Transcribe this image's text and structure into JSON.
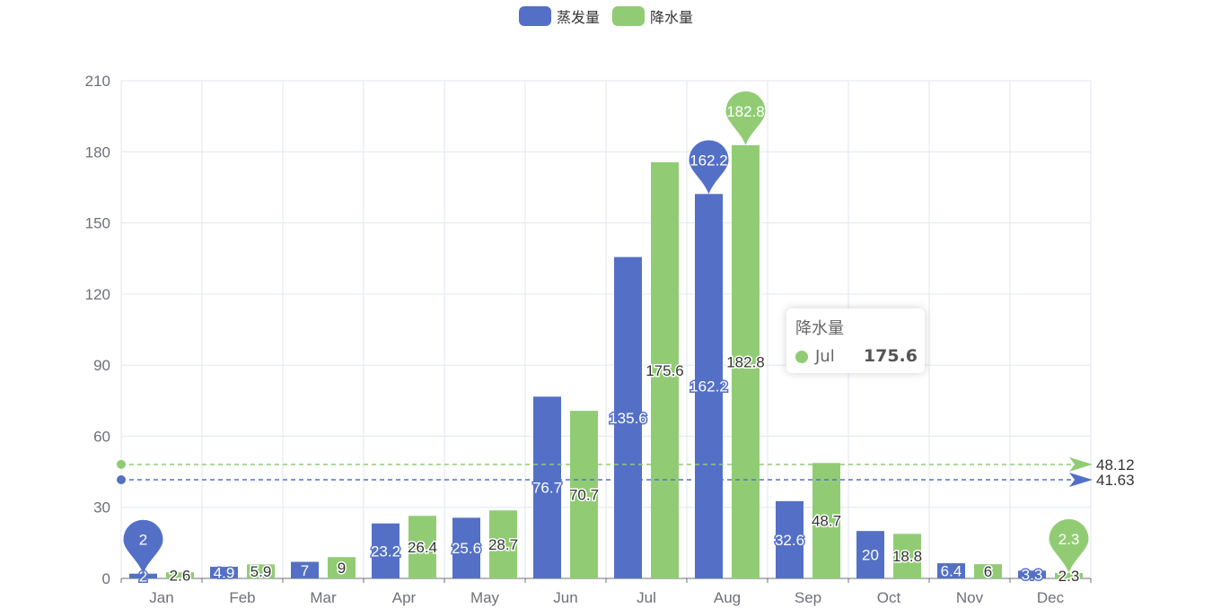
{
  "legend": [
    {
      "name": "蒸发量",
      "color": "#5470c6"
    },
    {
      "name": "降水量",
      "color": "#91cc75"
    }
  ],
  "chart_data": {
    "type": "bar",
    "categories": [
      "Jan",
      "Feb",
      "Mar",
      "Apr",
      "May",
      "Jun",
      "Jul",
      "Aug",
      "Sep",
      "Oct",
      "Nov",
      "Dec"
    ],
    "series": [
      {
        "name": "蒸发量",
        "color": "#5470c6",
        "values": [
          2,
          4.9,
          7,
          23.2,
          25.6,
          76.7,
          135.6,
          162.2,
          32.6,
          20,
          6.4,
          3.3
        ],
        "mark_points": [
          {
            "label": "162.2",
            "category": "Aug",
            "value": 162.2
          },
          {
            "label": "2",
            "category": "Jan",
            "value": 2
          }
        ],
        "mark_line": {
          "label": "41.63",
          "value": 41.63
        }
      },
      {
        "name": "降水量",
        "color": "#91cc75",
        "values": [
          2.6,
          5.9,
          9,
          26.4,
          28.7,
          70.7,
          175.6,
          182.8,
          48.7,
          18.8,
          6,
          2.3
        ],
        "mark_points": [
          {
            "label": "182.8",
            "category": "Aug",
            "value": 182.8
          },
          {
            "label": "2.3",
            "category": "Dec",
            "value": 2.3
          }
        ],
        "mark_line": {
          "label": "48.12",
          "value": 48.12
        }
      }
    ],
    "ylim": [
      0,
      210
    ],
    "yticks": [
      0,
      30,
      60,
      90,
      120,
      150,
      180,
      210
    ],
    "grid": true,
    "legend_position": "top-center"
  },
  "tooltip": {
    "title": "降水量",
    "category": "Jul",
    "value": "175.6",
    "color": "#91cc75"
  }
}
